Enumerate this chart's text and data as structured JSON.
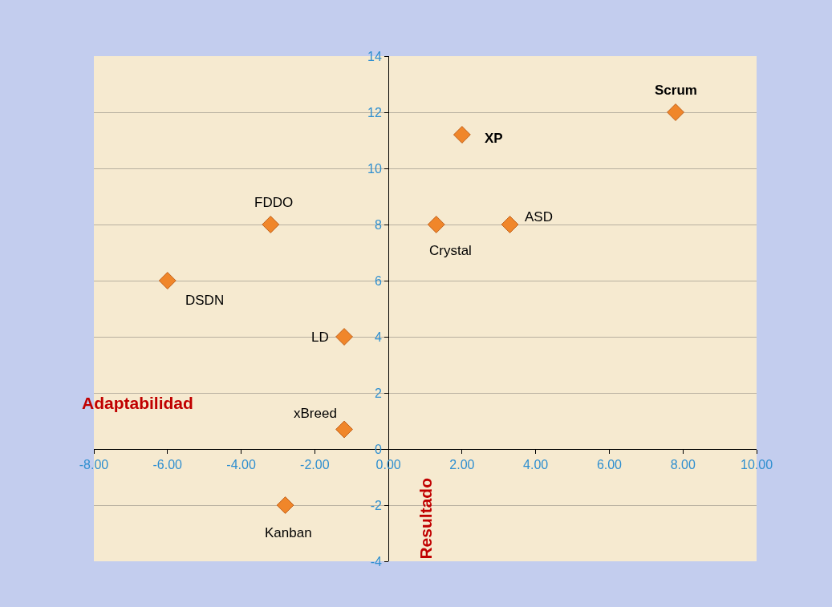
{
  "chart_data": {
    "type": "scatter",
    "xlabel": "Adaptabilidad",
    "ylabel": "Resultado",
    "x": [
      7.8,
      2.0,
      3.3,
      1.3,
      -3.2,
      -6.0,
      -1.2,
      -1.2,
      -2.8
    ],
    "series": [
      {
        "color": "#f0862a",
        "values": [
          12,
          11.2,
          8,
          8,
          8,
          6,
          4,
          0.7,
          -2
        ]
      }
    ],
    "marker": "diamond",
    "grid": "y",
    "xlim": [
      -8,
      10
    ],
    "ylim": [
      -4,
      14
    ],
    "xticks": [
      {
        "value": -8,
        "label": "-8.00"
      },
      {
        "value": -6,
        "label": "-6.00"
      },
      {
        "value": -4,
        "label": "-4.00"
      },
      {
        "value": -2,
        "label": "-2.00"
      },
      {
        "value": 0,
        "label": "0.00"
      },
      {
        "value": 2,
        "label": "2.00"
      },
      {
        "value": 4,
        "label": "4.00"
      },
      {
        "value": 6,
        "label": "6.00"
      },
      {
        "value": 8,
        "label": "8.00"
      },
      {
        "value": 10,
        "label": "10.00"
      }
    ],
    "yticks": [
      -4,
      -2,
      0,
      2,
      4,
      6,
      8,
      10,
      12,
      14
    ],
    "annotations": [
      {
        "text": "Scrum",
        "x": 7.8,
        "y": 12
      },
      {
        "text": "XP",
        "x": 2.0,
        "y": 11.2
      },
      {
        "text": "ASD",
        "x": 3.3,
        "y": 8
      },
      {
        "text": "Crystal",
        "x": 1.3,
        "y": 8
      },
      {
        "text": "FDDO",
        "x": -3.2,
        "y": 8
      },
      {
        "text": "DSDN",
        "x": -6.0,
        "y": 6
      },
      {
        "text": "LD",
        "x": -1.2,
        "y": 4
      },
      {
        "text": "xBreed",
        "x": -1.2,
        "y": 0.7
      },
      {
        "text": "Kanban",
        "x": -2.8,
        "y": -2
      }
    ]
  }
}
